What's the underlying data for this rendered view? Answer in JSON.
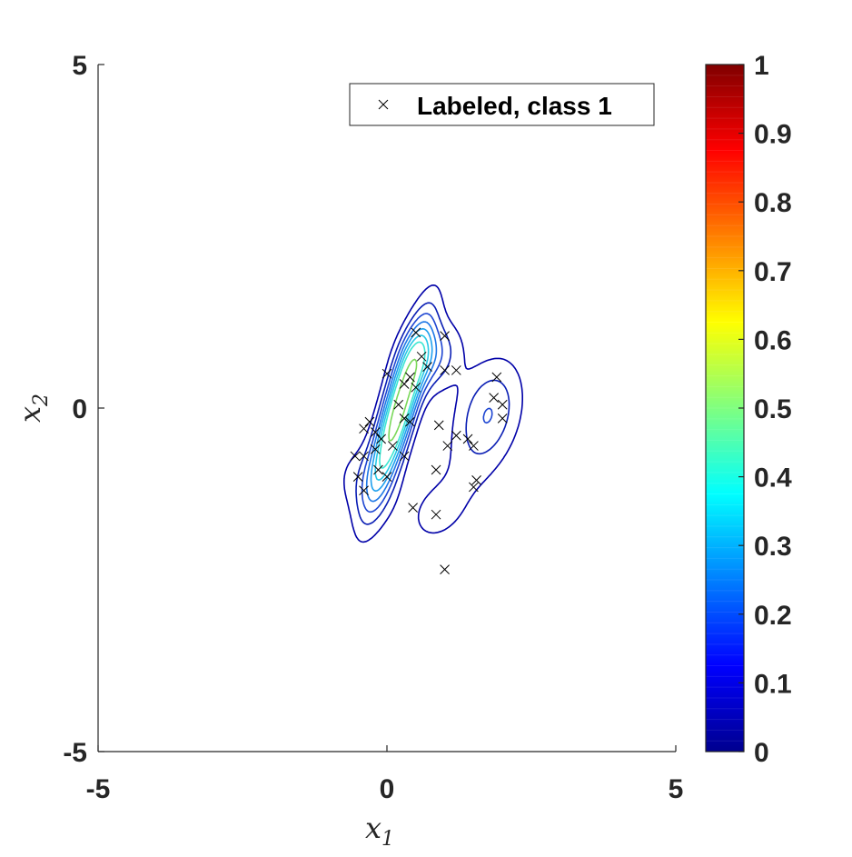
{
  "chart_data": {
    "type": "scatter",
    "title": "",
    "xlabel": "x",
    "xlabel_sub": "1",
    "ylabel": "x",
    "ylabel_sub": "2",
    "xlim": [
      -5,
      5
    ],
    "ylim": [
      -5,
      5
    ],
    "xticks": [
      "-5",
      "0",
      "5"
    ],
    "yticks": [
      "-5",
      "0",
      "5"
    ],
    "grid": false,
    "legend": {
      "placement": "top-right",
      "entries": [
        "Labeled, class 1"
      ]
    },
    "series": [
      {
        "name": "Labeled, class 1",
        "marker": "x",
        "color": "#000000",
        "points": [
          [
            0.5,
            1.1
          ],
          [
            1.0,
            1.05
          ],
          [
            0.6,
            0.75
          ],
          [
            0.7,
            0.6
          ],
          [
            1.0,
            0.55
          ],
          [
            1.2,
            0.55
          ],
          [
            0.0,
            0.5
          ],
          [
            0.4,
            0.45
          ],
          [
            0.3,
            0.35
          ],
          [
            0.5,
            0.3
          ],
          [
            1.9,
            0.45
          ],
          [
            1.85,
            0.15
          ],
          [
            2.0,
            0.05
          ],
          [
            2.0,
            -0.15
          ],
          [
            0.2,
            0.05
          ],
          [
            0.3,
            -0.15
          ],
          [
            0.4,
            -0.2
          ],
          [
            0.9,
            -0.25
          ],
          [
            -0.3,
            -0.2
          ],
          [
            -0.2,
            -0.35
          ],
          [
            -0.4,
            -0.3
          ],
          [
            -0.1,
            -0.45
          ],
          [
            -0.2,
            -0.6
          ],
          [
            -0.4,
            -0.7
          ],
          [
            0.1,
            -0.55
          ],
          [
            0.3,
            -0.7
          ],
          [
            1.2,
            -0.4
          ],
          [
            1.4,
            -0.45
          ],
          [
            1.5,
            -0.55
          ],
          [
            1.05,
            -0.55
          ],
          [
            -0.55,
            -0.7
          ],
          [
            -0.5,
            -1.0
          ],
          [
            -0.15,
            -0.9
          ],
          [
            0.0,
            -1.0
          ],
          [
            0.85,
            -0.9
          ],
          [
            1.55,
            -1.05
          ],
          [
            1.5,
            -1.15
          ],
          [
            -0.4,
            -1.2
          ],
          [
            0.45,
            -1.45
          ],
          [
            0.85,
            -1.55
          ],
          [
            1.0,
            -2.35
          ]
        ]
      }
    ],
    "contours": {
      "levels": [
        0.05,
        0.1,
        0.15,
        0.2,
        0.25,
        0.3,
        0.35,
        0.45
      ],
      "colors": [
        "#0000a8",
        "#0a1eb4",
        "#1e46d2",
        "#1e78e6",
        "#1ea0ee",
        "#28c8e6",
        "#3ce6d2",
        "#7ad85a"
      ]
    },
    "colorbar": {
      "ticks": [
        "0",
        "0.1",
        "0.2",
        "0.3",
        "0.4",
        "0.5",
        "0.6",
        "0.7",
        "0.8",
        "0.9",
        "1"
      ],
      "colormap": "jet",
      "range": [
        0,
        1
      ]
    }
  }
}
